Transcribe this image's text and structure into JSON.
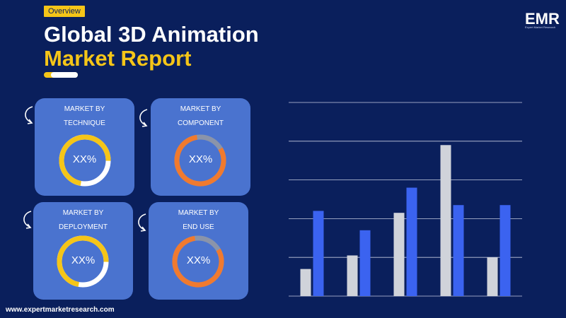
{
  "header": {
    "tag": "Overview",
    "title_line1": "Global 3D Animation",
    "title_line2": "Market Report"
  },
  "logo": {
    "name": "EMR",
    "subtitle": "Expert Market Research"
  },
  "cards": [
    {
      "label_line1": "MARKET BY",
      "label_line2": "TECHNIQUE",
      "value": "XX%",
      "ring_color": "#f5c518"
    },
    {
      "label_line1": "MARKET BY",
      "label_line2": "COMPONENT",
      "value": "XX%",
      "ring_color": "#f07a2f"
    },
    {
      "label_line1": "MARKET BY",
      "label_line2": "DEPLOYMENT",
      "value": "XX%",
      "ring_color": "#f5c518"
    },
    {
      "label_line1": "MARKET BY",
      "label_line2": "END USE",
      "value": "XX%",
      "ring_color": "#f07a2f"
    }
  ],
  "chart_data": {
    "type": "bar",
    "categories": [
      "",
      "",
      "",
      "",
      ""
    ],
    "series": [
      {
        "values": [
          0.7,
          1.05,
          2.15,
          3.9,
          1.0
        ],
        "color": "#d0d3da"
      },
      {
        "values": [
          2.2,
          1.7,
          2.8,
          2.35,
          2.35
        ],
        "color": "#3b63f0"
      }
    ],
    "ylim": [
      0,
      5
    ],
    "grid": true
  },
  "footer": {
    "url": "www.expertmarketresearch.com"
  }
}
